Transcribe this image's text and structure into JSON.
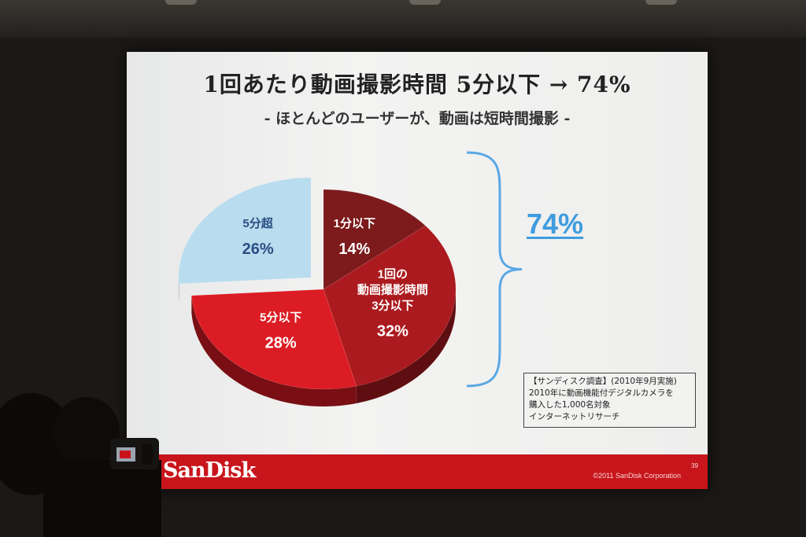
{
  "slide": {
    "title": "1回あたり動画撮影時間 5分以下 → 74%",
    "subtitle": "- ほとんどのユーザーが、動画は短時間撮影 -",
    "bracket_total": "74%",
    "note_lines": [
      "【サンディスク調査】(2010年9月実施)",
      "2010年に動画機能付デジタルカメラを",
      "購入した1,000名対象",
      "インターネットリサーチ"
    ],
    "logo": "SanDisk",
    "copyright": "©2011 SanDisk Corporation",
    "page_number": "39"
  },
  "chart_data": {
    "type": "pie",
    "title": "1回あたり動画撮影時間 5分以下 → 74%",
    "slices": [
      {
        "label": "1分以下",
        "value": 14,
        "value_label": "14%",
        "color": "#7c1a1c"
      },
      {
        "label": "1回の\n動画撮影時間\n3分以下",
        "value": 32,
        "value_label": "32%",
        "color": "#ab1a1e"
      },
      {
        "label": "5分以下",
        "value": 28,
        "value_label": "28%",
        "color": "#dc1c24"
      },
      {
        "label": "5分超",
        "value": 26,
        "value_label": "26%",
        "color": "#b9dcef"
      }
    ],
    "exploded": "5分超",
    "bracket_groups": [
      "1分以下",
      "1回の\n動画撮影時間\n3分以下",
      "5分以下"
    ],
    "bracket_value": "74%"
  }
}
